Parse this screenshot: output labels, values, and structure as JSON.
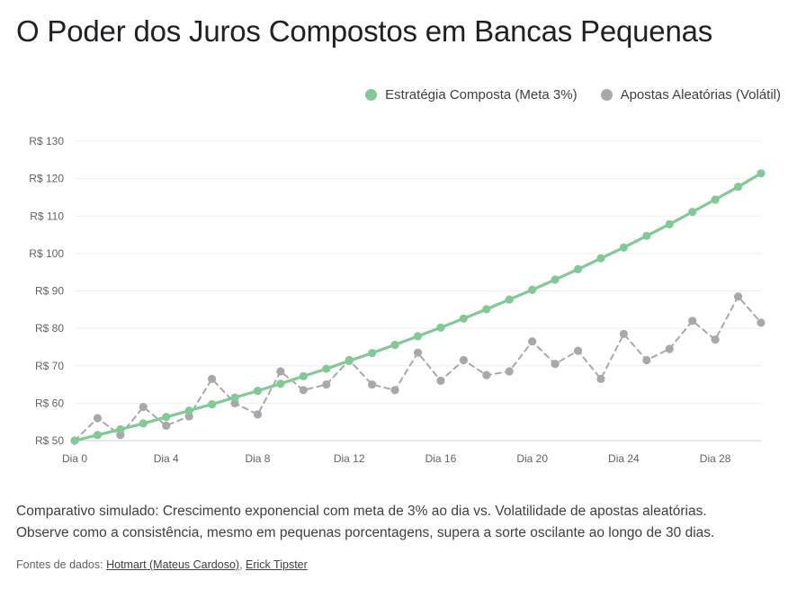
{
  "title": "O Poder dos Juros Compostos em Bancas Pequenas",
  "legend": [
    {
      "label": "Estratégia Composta (Meta 3%)",
      "color": "#81c995"
    },
    {
      "label": "Apostas Aleatórias (Volátil)",
      "color": "#a8a8a8"
    }
  ],
  "caption": {
    "line1": "Comparativo simulado: Crescimento exponencial com meta de 3% ao dia vs. Volatilidade de apostas aleatórias.",
    "line2": "Observe como a consistência, mesmo em pequenas porcentagens, supera a sorte oscilante ao longo de 30 dias."
  },
  "sources": {
    "prefix": "Fontes de dados:",
    "links": [
      "Hotmart (Mateus Cardoso)",
      "Erick Tipster"
    ],
    "separator": ","
  },
  "chart_data": {
    "type": "line",
    "title": "O Poder dos Juros Compostos em Bancas Pequenas",
    "xlabel": "",
    "ylabel": "",
    "x": [
      0,
      1,
      2,
      3,
      4,
      5,
      6,
      7,
      8,
      9,
      10,
      11,
      12,
      13,
      14,
      15,
      16,
      17,
      18,
      19,
      20,
      21,
      22,
      23,
      24,
      25,
      26,
      27,
      28,
      29,
      30
    ],
    "x_tick_labels": [
      "Dia 0",
      "Dia 4",
      "Dia 8",
      "Dia 12",
      "Dia 16",
      "Dia 20",
      "Dia 24",
      "Dia 28"
    ],
    "x_tick_values": [
      0,
      4,
      8,
      12,
      16,
      20,
      24,
      28
    ],
    "y_tick_labels": [
      "R$ 50",
      "R$ 60",
      "R$ 70",
      "R$ 80",
      "R$ 90",
      "R$ 100",
      "R$ 110",
      "R$ 120",
      "R$ 130"
    ],
    "y_tick_values": [
      50,
      60,
      70,
      80,
      90,
      100,
      110,
      120,
      130
    ],
    "ylim": [
      50,
      130
    ],
    "xlim": [
      0,
      30
    ],
    "grid": true,
    "legend_position": "top-right",
    "series": [
      {
        "name": "Estratégia Composta (Meta 3%)",
        "color": "#81c995",
        "style": "solid",
        "values": [
          50.0,
          51.5,
          53.0,
          54.6,
          56.3,
          58.0,
          59.7,
          61.5,
          63.3,
          65.2,
          67.2,
          69.2,
          71.3,
          73.4,
          75.6,
          77.9,
          80.2,
          82.6,
          85.1,
          87.7,
          90.3,
          93.0,
          95.8,
          98.7,
          101.6,
          104.7,
          107.8,
          111.1,
          114.4,
          117.8,
          121.4
        ]
      },
      {
        "name": "Apostas Aleatórias (Volátil)",
        "color": "#a8a8a8",
        "style": "dashed",
        "values": [
          50.0,
          56.0,
          51.5,
          59.0,
          54.0,
          56.5,
          66.5,
          60.0,
          57.0,
          68.5,
          63.5,
          65.0,
          71.5,
          65.0,
          63.5,
          73.5,
          66.0,
          71.5,
          67.5,
          68.5,
          76.5,
          70.5,
          74.0,
          66.5,
          78.5,
          71.5,
          74.5,
          82.0,
          77.0,
          88.5,
          81.5
        ]
      }
    ]
  }
}
